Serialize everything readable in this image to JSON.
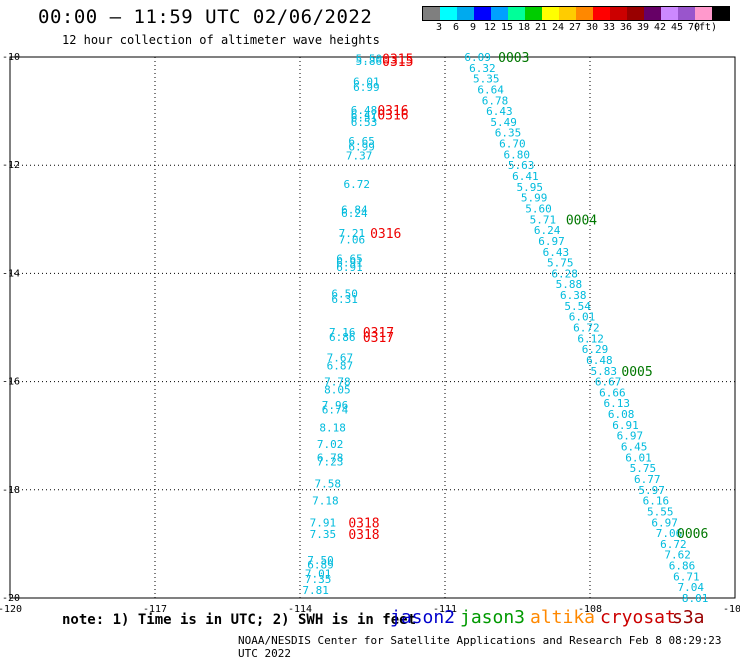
{
  "title": "00:00 – 11:59 UTC 02/06/2022",
  "subtitle": "12 hour collection of altimeter wave heights",
  "colorbar": {
    "colors": [
      "#7f7f7f",
      "#00ffff",
      "#00aaee",
      "#0000ff",
      "#00a0ff",
      "#00ff99",
      "#00cc00",
      "#ffff00",
      "#ffcc00",
      "#ff8800",
      "#ff0000",
      "#cc0000",
      "#990000",
      "#660066",
      "#cc88ff",
      "#9955cc",
      "#ff99cc",
      "#000000"
    ],
    "labels": [
      "3",
      "6",
      "9",
      "12",
      "15",
      "18",
      "21",
      "24",
      "27",
      "30",
      "33",
      "36",
      "39",
      "42",
      "45",
      "70",
      "(ft)"
    ]
  },
  "note": "note: 1) Time is in UTC; 2) SWH is in feet",
  "legend": [
    {
      "name": "jason2",
      "color": "#0000cc"
    },
    {
      "name": "jason3",
      "color": "#009900"
    },
    {
      "name": "altika",
      "color": "#ff8800"
    },
    {
      "name": "cryosat",
      "color": "#cc0000"
    },
    {
      "name": "s3a",
      "color": "#990000"
    }
  ],
  "credit": "NOAA/NESDIS Center for Satellite Applications and Research   Feb  8 08:29:23 UTC 2022",
  "map": {
    "lon_range": [
      -120,
      -105
    ],
    "lat_range": [
      -20,
      -10
    ],
    "x_ticks": [
      "-120",
      "-117",
      "-114",
      "-111",
      "-108",
      "-105"
    ],
    "y_ticks": [
      "-10",
      "-12",
      "-14",
      "-16",
      "-18",
      "-20"
    ],
    "track_color": "#00bbdd",
    "time_color": "#ee0000",
    "time_color2": "#007700",
    "track_west": [
      {
        "lon": -112.85,
        "lat": -10.03,
        "v": "5.50"
      },
      {
        "lon": -112.85,
        "lat": -10.07,
        "v": "5.86"
      },
      {
        "lon": -112.9,
        "lat": -10.45,
        "v": "6.01"
      },
      {
        "lon": -112.9,
        "lat": -10.55,
        "v": "6.99"
      },
      {
        "lon": -112.95,
        "lat": -10.98,
        "v": "6.48"
      },
      {
        "lon": -112.95,
        "lat": -11.06,
        "v": "6.47"
      },
      {
        "lon": -112.95,
        "lat": -11.12,
        "v": "6.51"
      },
      {
        "lon": -112.95,
        "lat": -11.2,
        "v": "6.53"
      },
      {
        "lon": -113.0,
        "lat": -11.55,
        "v": "6.65"
      },
      {
        "lon": -113.0,
        "lat": -11.65,
        "v": "6.99"
      },
      {
        "lon": -113.05,
        "lat": -11.82,
        "v": "7.37"
      },
      {
        "lon": -113.1,
        "lat": -12.35,
        "v": "6.72"
      },
      {
        "lon": -113.15,
        "lat": -12.82,
        "v": "6.84"
      },
      {
        "lon": -113.15,
        "lat": -12.88,
        "v": "6.24"
      },
      {
        "lon": -113.2,
        "lat": -13.25,
        "v": "7.21"
      },
      {
        "lon": -113.2,
        "lat": -13.37,
        "v": "7.06"
      },
      {
        "lon": -113.25,
        "lat": -13.72,
        "v": "6.65"
      },
      {
        "lon": -113.25,
        "lat": -13.8,
        "v": "6.91"
      },
      {
        "lon": -113.25,
        "lat": -13.88,
        "v": "6.91"
      },
      {
        "lon": -113.35,
        "lat": -14.37,
        "v": "6.50"
      },
      {
        "lon": -113.35,
        "lat": -14.47,
        "v": "6.31"
      },
      {
        "lon": -113.4,
        "lat": -15.08,
        "v": "7.16"
      },
      {
        "lon": -113.4,
        "lat": -15.18,
        "v": "6.86"
      },
      {
        "lon": -113.45,
        "lat": -15.55,
        "v": "7.67"
      },
      {
        "lon": -113.45,
        "lat": -15.7,
        "v": "6.87"
      },
      {
        "lon": -113.5,
        "lat": -16.0,
        "v": "7.78"
      },
      {
        "lon": -113.5,
        "lat": -16.15,
        "v": "8.05"
      },
      {
        "lon": -113.55,
        "lat": -16.43,
        "v": "7.96"
      },
      {
        "lon": -113.55,
        "lat": -16.52,
        "v": "6.74"
      },
      {
        "lon": -113.6,
        "lat": -16.85,
        "v": "8.18"
      },
      {
        "lon": -113.65,
        "lat": -17.15,
        "v": "7.02"
      },
      {
        "lon": -113.65,
        "lat": -17.4,
        "v": "6.78"
      },
      {
        "lon": -113.65,
        "lat": -17.48,
        "v": "7.23"
      },
      {
        "lon": -113.7,
        "lat": -17.88,
        "v": "7.58"
      },
      {
        "lon": -113.75,
        "lat": -18.2,
        "v": "7.18"
      },
      {
        "lon": -113.8,
        "lat": -18.6,
        "v": "7.91"
      },
      {
        "lon": -113.8,
        "lat": -18.82,
        "v": "7.35"
      },
      {
        "lon": -113.85,
        "lat": -19.3,
        "v": "7.50"
      },
      {
        "lon": -113.85,
        "lat": -19.38,
        "v": "6.89"
      },
      {
        "lon": -113.9,
        "lat": -19.55,
        "v": "7.01"
      },
      {
        "lon": -113.9,
        "lat": -19.65,
        "v": "7.35"
      },
      {
        "lon": -113.95,
        "lat": -19.85,
        "v": "7.81"
      }
    ],
    "times_west": [
      {
        "lon": -112.3,
        "lat": -10.03,
        "v": "0315"
      },
      {
        "lon": -112.3,
        "lat": -10.07,
        "v": "0315"
      },
      {
        "lon": -112.4,
        "lat": -10.98,
        "v": "0316"
      },
      {
        "lon": -112.4,
        "lat": -11.06,
        "v": "0316"
      },
      {
        "lon": -112.55,
        "lat": -13.25,
        "v": "0316"
      },
      {
        "lon": -112.7,
        "lat": -15.08,
        "v": "0317"
      },
      {
        "lon": -112.7,
        "lat": -15.18,
        "v": "0317"
      },
      {
        "lon": -113.0,
        "lat": -18.6,
        "v": "0318"
      },
      {
        "lon": -113.0,
        "lat": -18.82,
        "v": "0318"
      }
    ],
    "track_east": [
      {
        "lon": -110.6,
        "lat": -10.0,
        "v": "6.09"
      },
      {
        "lon": -110.5,
        "lat": -10.2,
        "v": "6.32"
      },
      {
        "lon": -110.42,
        "lat": -10.4,
        "v": "5.35"
      },
      {
        "lon": -110.33,
        "lat": -10.6,
        "v": "6.64"
      },
      {
        "lon": -110.24,
        "lat": -10.8,
        "v": "6.78"
      },
      {
        "lon": -110.15,
        "lat": -11.0,
        "v": "6.43"
      },
      {
        "lon": -110.06,
        "lat": -11.2,
        "v": "5.49"
      },
      {
        "lon": -109.97,
        "lat": -11.4,
        "v": "6.35"
      },
      {
        "lon": -109.88,
        "lat": -11.6,
        "v": "6.70"
      },
      {
        "lon": -109.79,
        "lat": -11.8,
        "v": "6.80"
      },
      {
        "lon": -109.7,
        "lat": -12.0,
        "v": "5.63"
      },
      {
        "lon": -109.61,
        "lat": -12.2,
        "v": "6.41"
      },
      {
        "lon": -109.52,
        "lat": -12.4,
        "v": "5.95"
      },
      {
        "lon": -109.43,
        "lat": -12.6,
        "v": "5.99"
      },
      {
        "lon": -109.34,
        "lat": -12.8,
        "v": "5.60"
      },
      {
        "lon": -109.25,
        "lat": -13.0,
        "v": "5.71"
      },
      {
        "lon": -109.16,
        "lat": -13.2,
        "v": "6.24"
      },
      {
        "lon": -109.07,
        "lat": -13.4,
        "v": "6.97"
      },
      {
        "lon": -108.98,
        "lat": -13.6,
        "v": "6.43"
      },
      {
        "lon": -108.89,
        "lat": -13.8,
        "v": "5.75"
      },
      {
        "lon": -108.8,
        "lat": -14.0,
        "v": "6.28"
      },
      {
        "lon": -108.71,
        "lat": -14.2,
        "v": "5.88"
      },
      {
        "lon": -108.62,
        "lat": -14.4,
        "v": "6.38"
      },
      {
        "lon": -108.53,
        "lat": -14.6,
        "v": "5.54"
      },
      {
        "lon": -108.44,
        "lat": -14.8,
        "v": "6.01"
      },
      {
        "lon": -108.35,
        "lat": -15.0,
        "v": "6.72"
      },
      {
        "lon": -108.26,
        "lat": -15.2,
        "v": "6.12"
      },
      {
        "lon": -108.17,
        "lat": -15.4,
        "v": "6.29"
      },
      {
        "lon": -108.08,
        "lat": -15.6,
        "v": "6.48"
      },
      {
        "lon": -107.99,
        "lat": -15.8,
        "v": "5.83"
      },
      {
        "lon": -107.9,
        "lat": -16.0,
        "v": "6.67"
      },
      {
        "lon": -107.81,
        "lat": -16.2,
        "v": "6.66"
      },
      {
        "lon": -107.72,
        "lat": -16.4,
        "v": "6.13"
      },
      {
        "lon": -107.63,
        "lat": -16.6,
        "v": "6.08"
      },
      {
        "lon": -107.54,
        "lat": -16.8,
        "v": "6.91"
      },
      {
        "lon": -107.45,
        "lat": -17.0,
        "v": "6.97"
      },
      {
        "lon": -107.36,
        "lat": -17.2,
        "v": "6.45"
      },
      {
        "lon": -107.27,
        "lat": -17.4,
        "v": "6.01"
      },
      {
        "lon": -107.18,
        "lat": -17.6,
        "v": "5.75"
      },
      {
        "lon": -107.09,
        "lat": -17.8,
        "v": "6.77"
      },
      {
        "lon": -107.0,
        "lat": -18.0,
        "v": "5.97"
      },
      {
        "lon": -106.91,
        "lat": -18.2,
        "v": "6.16"
      },
      {
        "lon": -106.82,
        "lat": -18.4,
        "v": "5.55"
      },
      {
        "lon": -106.73,
        "lat": -18.6,
        "v": "6.97"
      },
      {
        "lon": -106.64,
        "lat": -18.8,
        "v": "7.06"
      },
      {
        "lon": -106.55,
        "lat": -19.0,
        "v": "6.72"
      },
      {
        "lon": -106.46,
        "lat": -19.2,
        "v": "7.62"
      },
      {
        "lon": -106.37,
        "lat": -19.4,
        "v": "6.86"
      },
      {
        "lon": -106.28,
        "lat": -19.6,
        "v": "6.71"
      },
      {
        "lon": -106.19,
        "lat": -19.8,
        "v": "7.04"
      },
      {
        "lon": -106.1,
        "lat": -20.0,
        "v": "8.01"
      }
    ],
    "times_east": [
      {
        "lon": -109.9,
        "lat": -10.0,
        "v": "0003"
      },
      {
        "lon": -108.5,
        "lat": -13.0,
        "v": "0004"
      },
      {
        "lon": -107.35,
        "lat": -15.8,
        "v": "0005"
      },
      {
        "lon": -106.2,
        "lat": -18.8,
        "v": "0006"
      }
    ]
  }
}
